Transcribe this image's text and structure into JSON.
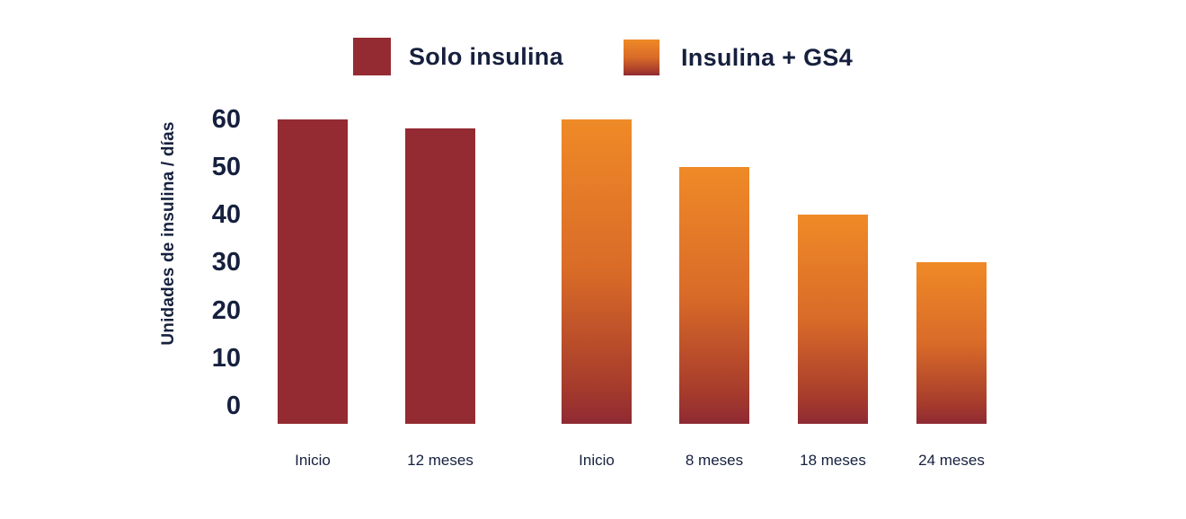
{
  "colors": {
    "background": "#ffffff",
    "text": "#16203e",
    "solo_insulina": "#942b33",
    "gs4_gradient": [
      "#ef8a27",
      "#d96b28",
      "#a63b2c",
      "#8e2a33"
    ]
  },
  "legend": {
    "items": [
      {
        "label": "Solo insulina",
        "swatch": "solid"
      },
      {
        "label": "Insulina + GS4",
        "swatch": "gradient"
      }
    ]
  },
  "chart_data": {
    "type": "bar",
    "title": "",
    "xlabel": "",
    "ylabel": "Unidades de insulina / días",
    "ylim": [
      0,
      60
    ],
    "yticks": [
      60,
      50,
      40,
      30,
      20,
      10,
      0
    ],
    "grid": false,
    "legend_position": "top",
    "series": [
      {
        "name": "Solo insulina",
        "style": "solid",
        "points": [
          {
            "x": "Inicio",
            "y": 60
          },
          {
            "x": "12 meses",
            "y": 58
          }
        ]
      },
      {
        "name": "Insulina + GS4",
        "style": "gradient",
        "points": [
          {
            "x": "Inicio",
            "y": 60
          },
          {
            "x": "8 meses",
            "y": 50
          },
          {
            "x": "18 meses",
            "y": 40
          },
          {
            "x": "24 meses",
            "y": 30
          }
        ]
      }
    ]
  }
}
